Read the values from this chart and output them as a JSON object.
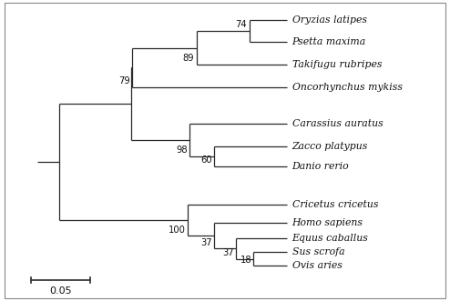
{
  "figsize": [
    4.94,
    3.31
  ],
  "dpi": 100,
  "line_color": "#2a2a2a",
  "text_color": "#111111",
  "font_size": 7.8,
  "bootstrap_font_size": 7.2,
  "scale_font_size": 8.0,
  "taxa": [
    "Oryzias latipes",
    "Psetta maxima",
    "Takifugu rubripes",
    "Oncorhynchus mykiss",
    "Carassius auratus",
    "Zacco platypus",
    "Danio rerio",
    "Cricetus cricetus",
    "Homo sapiens",
    "Equus caballus",
    "Sus scrofa",
    "Ovis aries"
  ],
  "border_color": "#888888",
  "border_lw": 0.8
}
